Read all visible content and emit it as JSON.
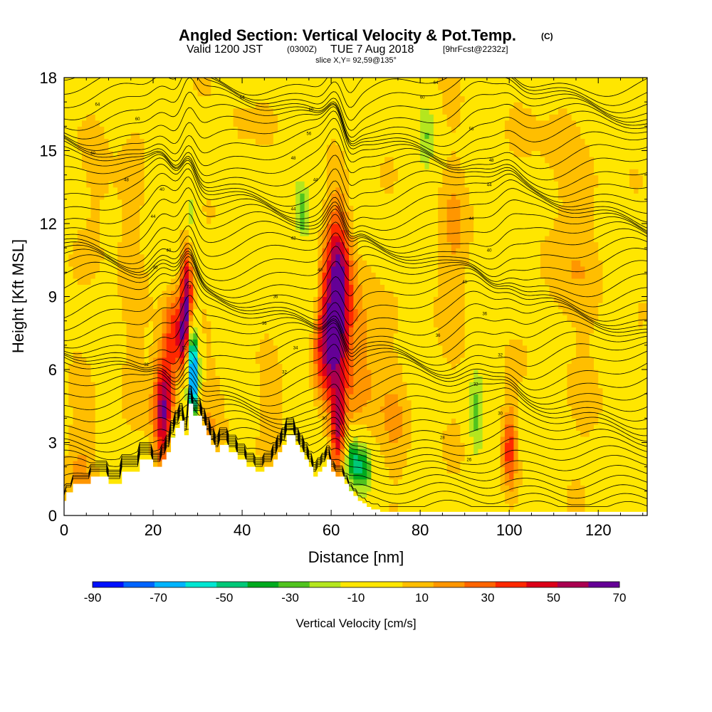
{
  "titles": {
    "main": "Angled Section: Vertical Velocity & Pot.Temp.",
    "main_units": "(C)",
    "valid_prefix": "Valid 1200 JST",
    "valid_utc": "(0300Z)",
    "valid_date": "TUE 7 Aug 2018",
    "forecast": "[9hrFcst@2232z]",
    "slice": "slice X,Y= 92,59@135°"
  },
  "colors": {
    "background_field": "#ffe600",
    "terrain": "#ffffff",
    "contour": "#000000"
  },
  "chart_data": {
    "type": "heatmap",
    "title": "Angled Section: Vertical Velocity & Pot.Temp. (C)",
    "xlabel": "Distance [nm]",
    "ylabel": "Height [Kft MSL]",
    "xlim": [
      0,
      131
    ],
    "ylim": [
      0,
      18
    ],
    "xticks": [
      0,
      20,
      40,
      60,
      80,
      100,
      120
    ],
    "yticks": [
      0,
      3,
      6,
      9,
      12,
      15,
      18
    ],
    "grid": false,
    "colorbar": {
      "label": "Vertical Velocity [cm/s]",
      "placement": "bottom",
      "tick_labels": [
        "-90",
        "-70",
        "-50",
        "-30",
        "-10",
        "10",
        "30",
        "50",
        "70"
      ],
      "bounds": [
        -90,
        -80,
        -70,
        -60,
        -50,
        -40,
        -30,
        -20,
        -10,
        0,
        10,
        20,
        30,
        40,
        50,
        60,
        70
      ],
      "colors": [
        "#0010ff",
        "#0064ff",
        "#00b4ff",
        "#00e6d2",
        "#00c878",
        "#00aa1e",
        "#50c31e",
        "#b4e61e",
        "#ffe600",
        "#ffe600",
        "#ffbe00",
        "#ff9600",
        "#ff6400",
        "#ff2800",
        "#dc0019",
        "#aa0050",
        "#640096"
      ]
    },
    "terrain_profile": {
      "x": [
        0,
        0.5,
        0.5,
        2,
        2,
        6,
        6,
        10,
        10,
        13,
        13,
        17,
        17,
        20,
        20,
        22,
        22,
        23,
        23,
        24,
        24,
        25,
        25,
        26,
        26,
        27,
        27,
        28,
        28,
        29,
        29,
        31,
        31,
        32,
        32,
        33,
        33,
        34,
        34,
        35,
        35,
        37,
        37,
        39,
        39,
        41,
        41,
        43,
        43,
        45,
        45,
        47,
        47,
        48,
        48,
        49,
        49,
        50,
        50,
        52,
        52,
        53,
        53,
        54,
        54,
        55,
        55,
        56,
        56,
        57,
        57,
        58,
        58,
        59,
        59,
        60,
        60,
        61,
        61,
        63,
        63,
        64,
        64,
        65,
        65,
        66,
        66,
        67,
        67,
        68,
        68,
        69,
        69,
        71,
        71,
        131
      ],
      "y": [
        0.6,
        0.6,
        0.95,
        0.95,
        1.3,
        1.3,
        1.6,
        1.6,
        1.3,
        1.3,
        1.8,
        1.8,
        2.3,
        2.3,
        2.0,
        2.0,
        2.3,
        2.3,
        2.6,
        2.6,
        3.2,
        3.2,
        3.6,
        3.6,
        3.9,
        3.9,
        3.3,
        3.3,
        4.6,
        4.6,
        4.1,
        4.1,
        3.7,
        3.7,
        3.3,
        3.3,
        2.9,
        2.9,
        2.6,
        2.6,
        2.9,
        2.9,
        2.6,
        2.6,
        2.3,
        2.3,
        2.0,
        2.0,
        1.8,
        1.8,
        2.0,
        2.0,
        2.3,
        2.3,
        2.6,
        2.6,
        2.9,
        2.9,
        3.3,
        3.3,
        2.9,
        2.9,
        2.6,
        2.6,
        2.3,
        2.3,
        2.0,
        2.0,
        1.6,
        1.6,
        1.8,
        1.8,
        2.0,
        2.0,
        2.3,
        2.3,
        1.8,
        1.8,
        1.6,
        1.6,
        1.3,
        1.3,
        1.0,
        1.0,
        0.8,
        0.8,
        0.6,
        0.6,
        0.5,
        0.5,
        0.35,
        0.35,
        0.25,
        0.25,
        0.15,
        0.15
      ]
    },
    "vertical_velocity_features": [
      {
        "x": 22.5,
        "z": 4.3,
        "sx": 1.6,
        "sz": 1.8,
        "w": 70,
        "tilt": 0
      },
      {
        "x": 24.5,
        "z": 7.5,
        "sx": 1.4,
        "sz": 1.3,
        "w": 35,
        "tilt": 0
      },
      {
        "x": 27.5,
        "z": 9.2,
        "sx": 1.0,
        "sz": 1.8,
        "w": 55,
        "tilt": 0
      },
      {
        "x": 27.0,
        "z": 7.2,
        "sx": 1.1,
        "sz": 1.0,
        "w": 45,
        "tilt": 0
      },
      {
        "x": 29.0,
        "z": 5.5,
        "sx": 0.9,
        "sz": 1.2,
        "w": -85,
        "tilt": 0
      },
      {
        "x": 28.5,
        "z": 7.0,
        "sx": 0.9,
        "sz": 0.8,
        "w": -40,
        "tilt": 0
      },
      {
        "x": 28.5,
        "z": 12.3,
        "sx": 0.9,
        "sz": 0.9,
        "w": -25,
        "tilt": 0
      },
      {
        "x": 24.5,
        "z": 2.8,
        "sx": 0.9,
        "sz": 0.8,
        "w": -45,
        "tilt": 0
      },
      {
        "x": 61.5,
        "z": 9.0,
        "sx": 2.0,
        "sz": 2.6,
        "w": 70,
        "tilt": 0
      },
      {
        "x": 58.5,
        "z": 7.0,
        "sx": 2.0,
        "sz": 1.5,
        "w": 45,
        "tilt": 0
      },
      {
        "x": 61.5,
        "z": 3.5,
        "sx": 1.1,
        "sz": 1.2,
        "w": 50,
        "tilt": 0
      },
      {
        "x": 66.0,
        "z": 7.0,
        "sx": 3.0,
        "sz": 2.5,
        "w": 28,
        "tilt": 0
      },
      {
        "x": 64.5,
        "z": 2.3,
        "sx": 1.2,
        "sz": 0.7,
        "w": -35,
        "tilt": 0
      },
      {
        "x": 67.0,
        "z": 2.0,
        "sx": 1.5,
        "sz": 0.7,
        "w": -40,
        "tilt": 0
      },
      {
        "x": 100.0,
        "z": 2.8,
        "sx": 1.2,
        "sz": 1.2,
        "w": 40,
        "tilt": 0
      },
      {
        "x": 92.5,
        "z": 4.0,
        "sx": 1.2,
        "sz": 1.5,
        "w": -25,
        "tilt": 0
      },
      {
        "x": 53.5,
        "z": 12.5,
        "sx": 1.0,
        "sz": 0.8,
        "w": -25,
        "tilt": 0
      },
      {
        "x": 55.5,
        "z": 9.5,
        "sx": 1.0,
        "sz": 1.4,
        "w": -18,
        "tilt": 0
      },
      {
        "x": 81.5,
        "z": 15.8,
        "sx": 1.4,
        "sz": 1.2,
        "w": -18,
        "tilt": 0
      },
      {
        "x": 19.5,
        "z": 13.8,
        "sx": 1.0,
        "sz": 0.9,
        "w": -20,
        "tilt": 0
      },
      {
        "x": 33.5,
        "z": 4.6,
        "sx": 3.0,
        "sz": 1.5,
        "w": 15,
        "tilt": 0
      },
      {
        "x": 48.0,
        "z": 3.8,
        "sx": 3.0,
        "sz": 1.2,
        "w": 14,
        "tilt": 0
      },
      {
        "x": 14.5,
        "z": 9.8,
        "sx": 2.5,
        "sz": 4.0,
        "w": 13,
        "tilt": 0
      },
      {
        "x": 8.0,
        "z": 14.5,
        "sx": 2.5,
        "sz": 3.0,
        "w": 12,
        "tilt": 0
      },
      {
        "x": 38.5,
        "z": 15.5,
        "sx": 3.0,
        "sz": 2.0,
        "w": 12,
        "tilt": 0
      },
      {
        "x": 110.0,
        "z": 13.0,
        "sx": 4.0,
        "sz": 5.0,
        "w": 12,
        "tilt": 0
      },
      {
        "x": 87.5,
        "z": 11.0,
        "sx": 3.0,
        "sz": 4.0,
        "w": 13,
        "tilt": 0
      },
      {
        "x": 119.0,
        "z": 8.5,
        "sx": 3.0,
        "sz": 4.0,
        "w": 11,
        "tilt": 0
      },
      {
        "x": 75.0,
        "z": 3.5,
        "sx": 3.0,
        "sz": 2.0,
        "w": 15,
        "tilt": 0
      },
      {
        "x": 4.0,
        "z": 2.5,
        "sx": 3.0,
        "sz": 2.5,
        "w": 14,
        "tilt": 0
      }
    ],
    "isentrope_labels": [
      {
        "text": "64",
        "x": 40,
        "z": 17.2
      },
      {
        "text": "64",
        "x": 7.5,
        "z": 16.9
      },
      {
        "text": "64",
        "x": 83.5,
        "z": 17.8
      },
      {
        "text": "60",
        "x": 55.5,
        "z": 16.7
      },
      {
        "text": "60",
        "x": 80.5,
        "z": 17.2
      },
      {
        "text": "60",
        "x": 16.5,
        "z": 16.3
      },
      {
        "text": "60",
        "x": 6.5,
        "z": 14.9
      },
      {
        "text": "56",
        "x": 55,
        "z": 15.7
      },
      {
        "text": "56",
        "x": 91.5,
        "z": 15.9
      },
      {
        "text": "48",
        "x": 51.5,
        "z": 14.7
      },
      {
        "text": "48",
        "x": 96,
        "z": 14.6
      },
      {
        "text": "48",
        "x": 14,
        "z": 13.8
      },
      {
        "text": "44",
        "x": 56.5,
        "z": 13.8
      },
      {
        "text": "44",
        "x": 95.5,
        "z": 13.6
      },
      {
        "text": "40",
        "x": 22,
        "z": 13.4
      },
      {
        "text": "44",
        "x": 20,
        "z": 12.3
      },
      {
        "text": "44",
        "x": 91.5,
        "z": 12.2
      },
      {
        "text": "44",
        "x": 51.5,
        "z": 12.6
      },
      {
        "text": "42",
        "x": 51.5,
        "z": 11.4
      },
      {
        "text": "40",
        "x": 95.5,
        "z": 10.9
      },
      {
        "text": "40",
        "x": 23.5,
        "z": 10.9
      },
      {
        "text": "40",
        "x": 20.5,
        "z": 10.2
      },
      {
        "text": "40",
        "x": 57.5,
        "z": 10.1
      },
      {
        "text": "40",
        "x": 90,
        "z": 9.6
      },
      {
        "text": "36",
        "x": 47.5,
        "z": 9.0
      },
      {
        "text": "36",
        "x": 94.5,
        "z": 8.3
      },
      {
        "text": "36",
        "x": 45,
        "z": 7.9
      },
      {
        "text": "36",
        "x": 84,
        "z": 7.4
      },
      {
        "text": "34",
        "x": 52,
        "z": 6.9
      },
      {
        "text": "32",
        "x": 98,
        "z": 6.6
      },
      {
        "text": "32",
        "x": 18.5,
        "z": 6.2
      },
      {
        "text": "32",
        "x": 49.5,
        "z": 5.9
      },
      {
        "text": "32",
        "x": 92.5,
        "z": 5.4
      },
      {
        "text": "30",
        "x": 98,
        "z": 4.2
      },
      {
        "text": "30",
        "x": 58.5,
        "z": 4.0
      },
      {
        "text": "28",
        "x": 85,
        "z": 3.2
      },
      {
        "text": "26",
        "x": 91,
        "z": 2.3
      },
      {
        "text": "72",
        "x": 28,
        "z": 9.4
      },
      {
        "text": "52",
        "x": 27,
        "z": 6.9
      },
      {
        "text": "28",
        "x": 60.5,
        "z": 3.4
      }
    ]
  }
}
